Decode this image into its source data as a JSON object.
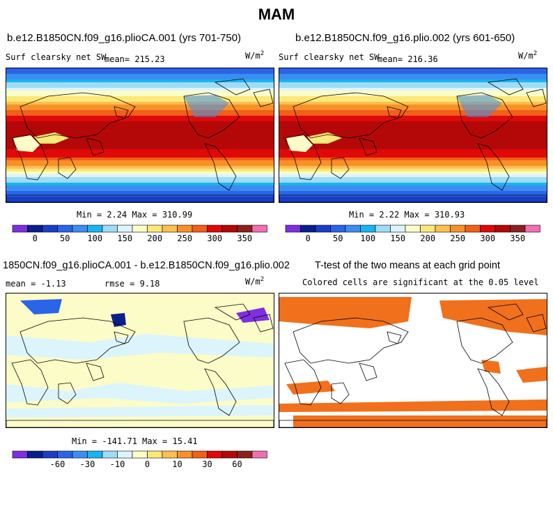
{
  "title": "MAM",
  "panels": [
    {
      "case": "b.e12.B1850CN.f09_g16.plioCA.001 (yrs 701-750)",
      "variable": "Surf clearsky net SW",
      "mean": "mean= 215.23",
      "units_base": "W/m",
      "units_exp": "2",
      "stats": "Min =   2.24 Max = 310.99"
    },
    {
      "case": "b.e12.B1850CN.f09_g16.plio.002 (yrs 601-650)",
      "variable": "Surf clearsky net SW",
      "mean": "mean= 216.36",
      "units_base": "W/m",
      "units_exp": "2",
      "stats": "Min =   2.22 Max = 310.93"
    },
    {
      "case": "1850CN.f09_g16.plioCA.001 - b.e12.B1850CN.f09_g16.plio.002",
      "mean": "mean =  -1.13",
      "rmse": "rmse =   9.18",
      "units_base": "W/m",
      "units_exp": "2",
      "stats": "Min = -141.71 Max =  15.41"
    },
    {
      "case": "T-test of the two means at each grid point",
      "subtitle": "Colored cells are significant at the 0.05 level"
    }
  ],
  "colorbars": {
    "absolute": {
      "colors": [
        "#7f2fe0",
        "#0a1e8c",
        "#1a3ec8",
        "#2a64e8",
        "#3a8ef0",
        "#1ab4f0",
        "#9edcf8",
        "#dcf4fc",
        "#fcfcc8",
        "#fce878",
        "#fcc050",
        "#f89028",
        "#f06018",
        "#e00808",
        "#b40808",
        "#8c2020",
        "#f070b0"
      ],
      "labels": [
        "0",
        "50",
        "100",
        "150",
        "200",
        "250",
        "300",
        "350"
      ]
    },
    "difference": {
      "colors": [
        "#7f2fe0",
        "#0a1e8c",
        "#1a3ec8",
        "#2a64e8",
        "#3a8ef0",
        "#1ab4f0",
        "#9edcf8",
        "#dcf4fc",
        "#fcfcc8",
        "#fce878",
        "#fcc050",
        "#f89028",
        "#f06018",
        "#e00808",
        "#b40808",
        "#8c2020",
        "#f070b0"
      ],
      "labels": [
        "-60",
        "-30",
        "-10",
        "0",
        "10",
        "30",
        "60"
      ]
    }
  },
  "chart_data": [
    {
      "type": "heatmap",
      "title": "b.e12.B1850CN.f09_g16.plioCA.001 (yrs 701-750)",
      "variable": "Surf clearsky net SW",
      "units": "W/m2",
      "season": "MAM",
      "mean": 215.23,
      "min": 2.24,
      "max": 310.99,
      "colorbar_ticks": [
        0,
        50,
        100,
        150,
        200,
        250,
        300,
        350
      ],
      "zonal_pattern_lat_deg": [
        90,
        75,
        60,
        45,
        30,
        15,
        0,
        -15,
        -30,
        -45,
        -60,
        -75,
        -90
      ],
      "zonal_pattern_value": [
        40,
        90,
        150,
        200,
        250,
        290,
        300,
        295,
        260,
        200,
        120,
        60,
        20
      ]
    },
    {
      "type": "heatmap",
      "title": "b.e12.B1850CN.f09_g16.plio.002 (yrs 601-650)",
      "variable": "Surf clearsky net SW",
      "units": "W/m2",
      "season": "MAM",
      "mean": 216.36,
      "min": 2.22,
      "max": 310.93,
      "colorbar_ticks": [
        0,
        50,
        100,
        150,
        200,
        250,
        300,
        350
      ],
      "zonal_pattern_lat_deg": [
        90,
        75,
        60,
        45,
        30,
        15,
        0,
        -15,
        -30,
        -45,
        -60,
        -75,
        -90
      ],
      "zonal_pattern_value": [
        40,
        92,
        152,
        202,
        252,
        291,
        301,
        296,
        261,
        201,
        121,
        61,
        20
      ]
    },
    {
      "type": "heatmap",
      "title": "1850CN.f09_g16.plioCA.001 - b.e12.B1850CN.f09_g16.plio.002",
      "units": "W/m2",
      "mean": -1.13,
      "rmse": 9.18,
      "min": -141.71,
      "max": 15.41,
      "colorbar_ticks": [
        -60,
        -30,
        -10,
        0,
        10,
        30,
        60
      ]
    },
    {
      "type": "heatmap",
      "title": "T-test of the two means at each grid point",
      "subtitle": "Colored cells are significant at the 0.05 level",
      "significance_level": 0.05
    }
  ]
}
